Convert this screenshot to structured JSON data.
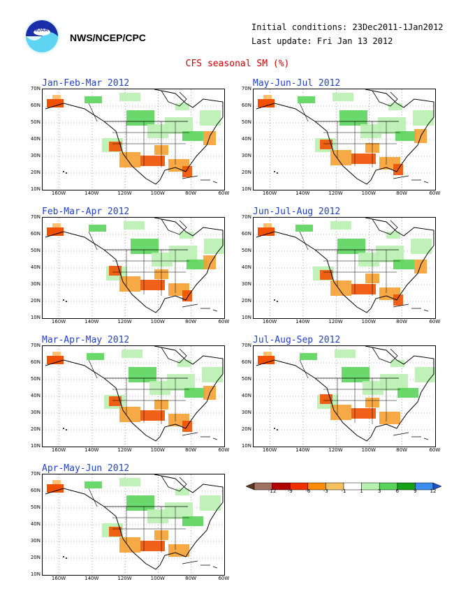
{
  "header": {
    "agency": "NWS/NCEP/CPC",
    "initial_conditions": "Initial conditions: 23Dec2011-1Jan2012",
    "last_update": "Last update: Fri Jan 13 2012",
    "title": "CFS seasonal SM (%)",
    "logo_text": "NOAA"
  },
  "axes": {
    "lat_labels": [
      "70N",
      "60N",
      "50N",
      "40N",
      "30N",
      "20N",
      "10N"
    ],
    "lon_labels": [
      "160W",
      "140W",
      "120W",
      "100W",
      "80W",
      "60W"
    ]
  },
  "panels": [
    {
      "title": "Jan-Feb-Mar 2012"
    },
    {
      "title": "May-Jun-Jul 2012"
    },
    {
      "title": "Feb-Mar-Apr 2012"
    },
    {
      "title": "Jun-Jul-Aug 2012"
    },
    {
      "title": "Mar-Apr-May 2012"
    },
    {
      "title": "Jul-Aug-Sep 2012"
    },
    {
      "title": "Apr-May-Jun 2012"
    }
  ],
  "legend": {
    "ticks": [
      "-12",
      "-9",
      "-6",
      "-3",
      "-1",
      "1",
      "3",
      "6",
      "9",
      "12"
    ],
    "colors": [
      "#5a3520",
      "#a07060",
      "#b00000",
      "#f03000",
      "#ff8c00",
      "#f5c060",
      "#ffffff",
      "#b8f0b0",
      "#5ad45a",
      "#16a016",
      "#3a8ef0",
      "#1e50c8"
    ]
  },
  "colors": {
    "title_red": "#d00000",
    "panel_title_blue": "#1f3fd0",
    "green_wet": "#5ad45a",
    "orange_dry": "#f5a030"
  }
}
